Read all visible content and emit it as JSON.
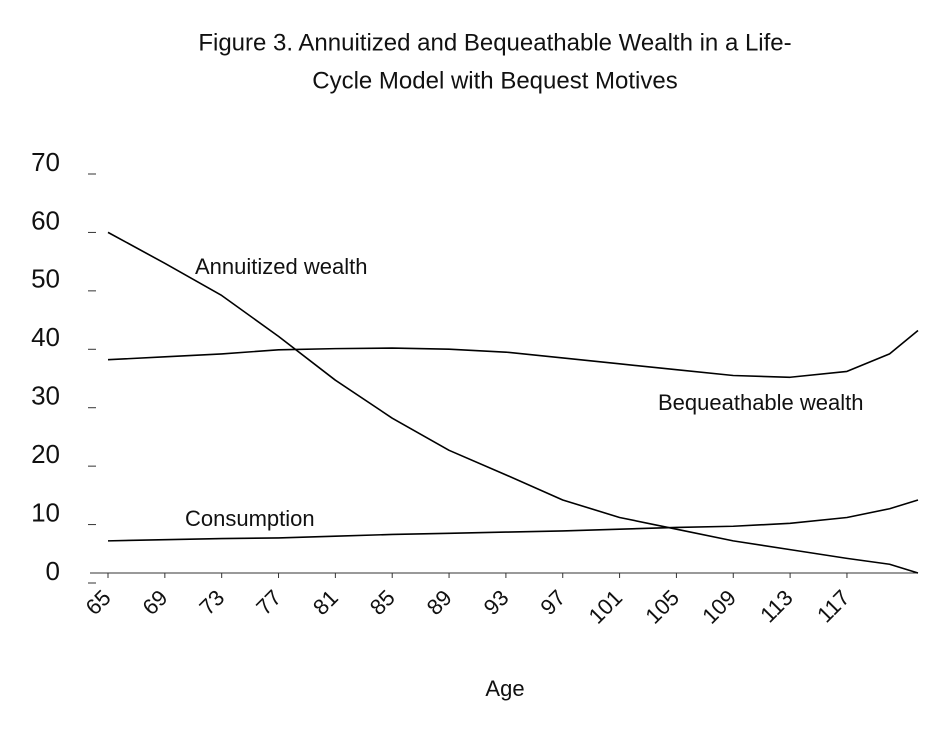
{
  "chart_data": {
    "type": "line",
    "title": [
      "Figure 3.  Annuitized and Bequeathable Wealth in a Life-",
      "Cycle Model with Bequest Motives"
    ],
    "x_label": "Age",
    "x": [
      65,
      69,
      73,
      77,
      81,
      85,
      89,
      93,
      97,
      101,
      105,
      109,
      113,
      117,
      120,
      122
    ],
    "series": [
      {
        "name": "Annuitized wealth",
        "color": "#000000",
        "values": [
          58.3,
          53,
          47.5,
          40.5,
          33,
          26.5,
          21,
          16.8,
          12.5,
          9.5,
          7.5,
          5.5,
          4,
          2.5,
          1.5,
          0
        ]
      },
      {
        "name": "Bequeathable wealth",
        "color": "#000000",
        "values": [
          36.5,
          37,
          37.5,
          38.2,
          38.4,
          38.5,
          38.3,
          37.8,
          36.8,
          35.8,
          34.8,
          33.8,
          33.5,
          34.5,
          37.5,
          41.5
        ]
      },
      {
        "name": "Consumption",
        "color": "#000000",
        "values": [
          5.5,
          5.7,
          5.9,
          6,
          6.3,
          6.6,
          6.8,
          7,
          7.2,
          7.5,
          7.8,
          8,
          8.5,
          9.5,
          11,
          12.5
        ]
      }
    ],
    "xlim": [
      65,
      122
    ],
    "xticks": [
      65,
      69,
      73,
      77,
      81,
      85,
      89,
      93,
      97,
      101,
      105,
      109,
      113,
      117
    ],
    "ylim": [
      0,
      70
    ],
    "yticks": [
      0,
      10,
      20,
      30,
      40,
      50,
      60,
      70
    ]
  }
}
